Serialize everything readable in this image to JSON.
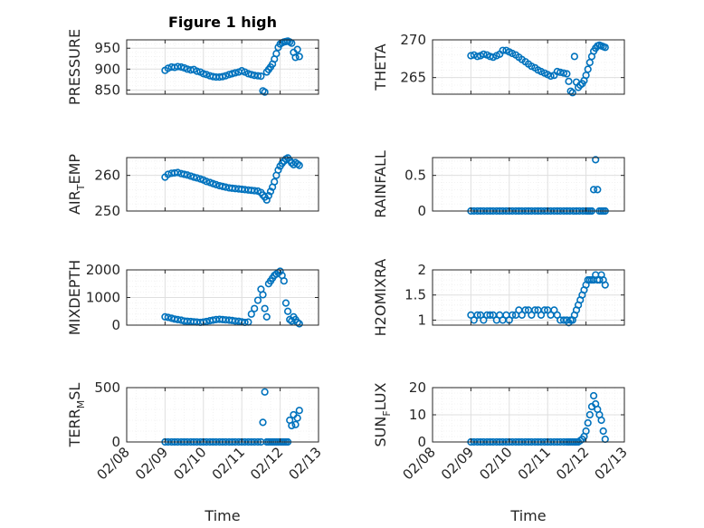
{
  "figure_title": "Figure 1 high",
  "colors": {
    "marker": "#0072BD",
    "axis": "#262626",
    "grid_major": "#dfdfdf",
    "grid_minor": "#efefef"
  },
  "chart_data": [
    {
      "type": "scatter",
      "title": "Figure 1 high",
      "ylabel_main": "PRESSURE",
      "ylabel_sub": "",
      "xlabel": "",
      "x_ticks": [],
      "ylim": [
        840,
        970
      ],
      "yticks": [
        850,
        900,
        950
      ],
      "xlim": [
        "02/08",
        "02/13"
      ],
      "grid": true,
      "marker": "circle",
      "series": [
        {
          "x": [
            9.0,
            9.08,
            9.17,
            9.25,
            9.33,
            9.42,
            9.5,
            9.58,
            9.67,
            9.75,
            9.83,
            9.92,
            10.0,
            10.08,
            10.17,
            10.25,
            10.33,
            10.42,
            10.5,
            10.58,
            10.67,
            10.75,
            10.83,
            10.92,
            11.0,
            11.08,
            11.17,
            11.25,
            11.33,
            11.42,
            11.5,
            11.55,
            11.6,
            11.65,
            11.7,
            11.75,
            11.8,
            11.85,
            11.9,
            11.95,
            12.0,
            12.05,
            12.1,
            12.15,
            12.2,
            12.25,
            12.3,
            12.35,
            12.4,
            12.45,
            12.5
          ],
          "y": [
            897,
            902,
            905,
            904,
            906,
            905,
            903,
            900,
            898,
            899,
            895,
            893,
            889,
            887,
            884,
            882,
            881,
            881,
            882,
            884,
            887,
            889,
            891,
            893,
            896,
            893,
            889,
            887,
            885,
            884,
            883,
            848,
            845,
            893,
            899,
            905,
            912,
            924,
            937,
            952,
            960,
            963,
            965,
            966,
            967,
            965,
            962,
            940,
            928,
            947,
            930
          ]
        }
      ]
    },
    {
      "type": "scatter",
      "title": "",
      "ylabel_main": "THETA",
      "ylabel_sub": "",
      "xlabel": "",
      "x_ticks": [],
      "ylim": [
        262.8,
        270
      ],
      "yticks": [
        265,
        270
      ],
      "xlim": [
        "02/08",
        "02/13"
      ],
      "grid": true,
      "marker": "circle",
      "series": [
        {
          "x": [
            9.0,
            9.08,
            9.17,
            9.25,
            9.33,
            9.42,
            9.5,
            9.58,
            9.67,
            9.75,
            9.83,
            9.92,
            10.0,
            10.08,
            10.17,
            10.25,
            10.33,
            10.42,
            10.5,
            10.58,
            10.67,
            10.75,
            10.83,
            10.92,
            11.0,
            11.08,
            11.17,
            11.25,
            11.33,
            11.42,
            11.5,
            11.55,
            11.6,
            11.65,
            11.7,
            11.75,
            11.8,
            11.85,
            11.9,
            11.95,
            12.0,
            12.05,
            12.1,
            12.15,
            12.2,
            12.25,
            12.3,
            12.35,
            12.4,
            12.45,
            12.5
          ],
          "y": [
            267.9,
            268.0,
            267.8,
            267.9,
            268.1,
            268.0,
            267.8,
            267.7,
            267.9,
            268.1,
            268.6,
            268.6,
            268.4,
            268.2,
            268.0,
            267.7,
            267.4,
            267.1,
            266.8,
            266.5,
            266.3,
            266.0,
            265.8,
            265.6,
            265.4,
            265.2,
            265.3,
            265.8,
            265.7,
            265.6,
            265.5,
            264.5,
            263.2,
            263.0,
            267.8,
            264.4,
            263.7,
            264.0,
            264.2,
            264.6,
            265.3,
            266.1,
            267.0,
            267.8,
            268.5,
            268.9,
            269.2,
            269.3,
            269.2,
            269.1,
            269.0
          ]
        }
      ]
    },
    {
      "type": "scatter",
      "title": "",
      "ylabel_main": "AIR",
      "ylabel_sub": "T",
      "ylabel_tail": "EMP",
      "xlabel": "",
      "x_ticks": [],
      "ylim": [
        250,
        265
      ],
      "yticks": [
        250,
        260
      ],
      "xlim": [
        "02/08",
        "02/13"
      ],
      "grid": true,
      "marker": "circle",
      "series": [
        {
          "x": [
            9.0,
            9.08,
            9.17,
            9.25,
            9.33,
            9.42,
            9.5,
            9.58,
            9.67,
            9.75,
            9.83,
            9.92,
            10.0,
            10.08,
            10.17,
            10.25,
            10.33,
            10.42,
            10.5,
            10.58,
            10.67,
            10.75,
            10.83,
            10.92,
            11.0,
            11.08,
            11.17,
            11.25,
            11.33,
            11.42,
            11.5,
            11.55,
            11.6,
            11.65,
            11.7,
            11.75,
            11.8,
            11.85,
            11.9,
            11.95,
            12.0,
            12.05,
            12.1,
            12.15,
            12.2,
            12.25,
            12.3,
            12.35,
            12.4,
            12.45,
            12.5
          ],
          "y": [
            259.5,
            260.3,
            260.6,
            260.7,
            260.8,
            260.5,
            260.3,
            260.1,
            259.8,
            259.5,
            259.3,
            259.0,
            258.7,
            258.3,
            258.0,
            257.7,
            257.4,
            257.1,
            256.9,
            256.7,
            256.5,
            256.4,
            256.3,
            256.2,
            256.1,
            256.0,
            255.9,
            255.8,
            255.7,
            255.6,
            255.2,
            254.5,
            253.9,
            253.1,
            254.3,
            255.5,
            256.7,
            258.2,
            260.0,
            261.5,
            262.6,
            263.4,
            264.0,
            264.6,
            264.9,
            264.2,
            263.5,
            263.0,
            263.6,
            263.2,
            262.8
          ]
        }
      ]
    },
    {
      "type": "scatter",
      "title": "",
      "ylabel_main": "RAINFALL",
      "ylabel_sub": "",
      "xlabel": "",
      "x_ticks": [],
      "ylim": [
        0,
        0.75
      ],
      "yticks": [
        0,
        0.5
      ],
      "ytick_labels": [
        "0",
        "0.5"
      ],
      "xlim": [
        "02/08",
        "02/13"
      ],
      "grid": true,
      "marker": "circle",
      "series": [
        {
          "x": [
            9.0,
            9.08,
            9.17,
            9.25,
            9.33,
            9.42,
            9.5,
            9.58,
            9.67,
            9.75,
            9.83,
            9.92,
            10.0,
            10.08,
            10.17,
            10.25,
            10.33,
            10.42,
            10.5,
            10.58,
            10.67,
            10.75,
            10.83,
            10.92,
            11.0,
            11.08,
            11.17,
            11.25,
            11.33,
            11.42,
            11.5,
            11.58,
            11.67,
            11.75,
            11.83,
            11.92,
            12.0,
            12.05,
            12.1,
            12.15,
            12.2,
            12.25,
            12.3,
            12.35,
            12.4,
            12.45,
            12.5
          ],
          "y": [
            0,
            0,
            0,
            0,
            0,
            0,
            0,
            0,
            0,
            0,
            0,
            0,
            0,
            0,
            0,
            0,
            0,
            0,
            0,
            0,
            0,
            0,
            0,
            0,
            0,
            0,
            0,
            0,
            0,
            0,
            0,
            0,
            0,
            0,
            0,
            0,
            0,
            0,
            0,
            0,
            0.3,
            0.72,
            0.3,
            0,
            0,
            0,
            0
          ]
        }
      ]
    },
    {
      "type": "scatter",
      "title": "",
      "ylabel_main": "MIXDEPTH",
      "ylabel_sub": "",
      "xlabel": "",
      "x_ticks": [],
      "ylim": [
        0,
        2000
      ],
      "yticks": [
        0,
        1000,
        2000
      ],
      "xlim": [
        "02/08",
        "02/13"
      ],
      "grid": true,
      "marker": "circle",
      "series": [
        {
          "x": [
            9.0,
            9.08,
            9.17,
            9.25,
            9.33,
            9.42,
            9.5,
            9.58,
            9.67,
            9.75,
            9.83,
            9.92,
            10.0,
            10.08,
            10.17,
            10.25,
            10.33,
            10.42,
            10.5,
            10.58,
            10.67,
            10.75,
            10.83,
            10.92,
            11.0,
            11.08,
            11.17,
            11.25,
            11.33,
            11.42,
            11.5,
            11.55,
            11.6,
            11.65,
            11.7,
            11.75,
            11.8,
            11.85,
            11.9,
            11.95,
            12.0,
            12.05,
            12.1,
            12.15,
            12.2,
            12.25,
            12.3,
            12.35,
            12.4,
            12.45,
            12.5
          ],
          "y": [
            300,
            280,
            250,
            220,
            200,
            180,
            150,
            140,
            130,
            120,
            110,
            100,
            110,
            130,
            160,
            180,
            200,
            210,
            200,
            190,
            180,
            170,
            150,
            140,
            120,
            100,
            110,
            400,
            600,
            900,
            1300,
            1100,
            600,
            300,
            1500,
            1600,
            1700,
            1800,
            1850,
            1900,
            1950,
            1800,
            1600,
            800,
            500,
            200,
            150,
            300,
            200,
            100,
            50
          ]
        }
      ]
    },
    {
      "type": "scatter",
      "title": "",
      "ylabel_main": "H2OMIXRA",
      "ylabel_sub": "",
      "xlabel": "",
      "x_ticks": [],
      "ylim": [
        0.9,
        2.0
      ],
      "yticks": [
        1,
        1.5,
        2
      ],
      "ytick_labels": [
        "1",
        "1.5",
        "2"
      ],
      "xlim": [
        "02/08",
        "02/13"
      ],
      "grid": true,
      "marker": "circle",
      "series": [
        {
          "x": [
            9.0,
            9.08,
            9.17,
            9.25,
            9.33,
            9.42,
            9.5,
            9.58,
            9.67,
            9.75,
            9.83,
            9.92,
            10.0,
            10.08,
            10.17,
            10.25,
            10.33,
            10.42,
            10.5,
            10.58,
            10.67,
            10.75,
            10.83,
            10.92,
            11.0,
            11.08,
            11.17,
            11.25,
            11.33,
            11.42,
            11.5,
            11.55,
            11.6,
            11.65,
            11.7,
            11.75,
            11.8,
            11.85,
            11.9,
            11.95,
            12.0,
            12.05,
            12.1,
            12.15,
            12.2,
            12.25,
            12.3,
            12.35,
            12.4,
            12.45,
            12.5
          ],
          "y": [
            1.1,
            1.0,
            1.1,
            1.1,
            1.0,
            1.1,
            1.1,
            1.1,
            1.0,
            1.1,
            1.0,
            1.1,
            1.0,
            1.1,
            1.1,
            1.2,
            1.1,
            1.2,
            1.2,
            1.1,
            1.2,
            1.2,
            1.1,
            1.2,
            1.2,
            1.1,
            1.2,
            1.1,
            1.0,
            1.0,
            1.0,
            0.95,
            1.0,
            1.0,
            1.1,
            1.2,
            1.3,
            1.4,
            1.5,
            1.6,
            1.7,
            1.8,
            1.8,
            1.8,
            1.8,
            1.9,
            1.8,
            1.8,
            1.9,
            1.8,
            1.7
          ]
        }
      ]
    },
    {
      "type": "scatter",
      "title": "",
      "ylabel_main": "TERR",
      "ylabel_sub": "M",
      "ylabel_tail": "SL",
      "xlabel": "Time",
      "ylim": [
        0,
        500
      ],
      "yticks": [
        0,
        500
      ],
      "xlim": [
        "02/08",
        "02/13"
      ],
      "grid": true,
      "marker": "circle",
      "x_ticks": [
        "02/08",
        "02/09",
        "02/10",
        "02/11",
        "02/12",
        "02/13"
      ],
      "series": [
        {
          "x": [
            9.0,
            9.08,
            9.17,
            9.25,
            9.33,
            9.42,
            9.5,
            9.58,
            9.67,
            9.75,
            9.83,
            9.92,
            10.0,
            10.08,
            10.17,
            10.25,
            10.33,
            10.42,
            10.5,
            10.58,
            10.67,
            10.75,
            10.83,
            10.92,
            11.0,
            11.08,
            11.17,
            11.25,
            11.33,
            11.42,
            11.5,
            11.55,
            11.6,
            11.65,
            11.7,
            11.75,
            11.8,
            11.85,
            11.9,
            11.95,
            12.0,
            12.05,
            12.1,
            12.15,
            12.2,
            12.25,
            12.3,
            12.35,
            12.4,
            12.45,
            12.5
          ],
          "y": [
            0,
            0,
            0,
            0,
            0,
            0,
            0,
            0,
            0,
            0,
            0,
            0,
            0,
            0,
            0,
            0,
            0,
            0,
            0,
            0,
            0,
            0,
            0,
            0,
            0,
            0,
            0,
            0,
            0,
            0,
            0,
            180,
            460,
            0,
            0,
            0,
            0,
            0,
            0,
            0,
            0,
            0,
            0,
            0,
            0,
            200,
            150,
            250,
            160,
            220,
            290
          ]
        }
      ]
    },
    {
      "type": "scatter",
      "title": "",
      "ylabel_main": "SUN",
      "ylabel_sub": "F",
      "ylabel_tail": "LUX",
      "xlabel": "Time",
      "ylim": [
        0,
        20
      ],
      "yticks": [
        0,
        10,
        20
      ],
      "xlim": [
        "02/08",
        "02/13"
      ],
      "grid": true,
      "marker": "circle",
      "x_ticks": [
        "02/08",
        "02/09",
        "02/10",
        "02/11",
        "02/12",
        "02/13"
      ],
      "series": [
        {
          "x": [
            9.0,
            9.08,
            9.17,
            9.25,
            9.33,
            9.42,
            9.5,
            9.58,
            9.67,
            9.75,
            9.83,
            9.92,
            10.0,
            10.08,
            10.17,
            10.25,
            10.33,
            10.42,
            10.5,
            10.58,
            10.67,
            10.75,
            10.83,
            10.92,
            11.0,
            11.08,
            11.17,
            11.25,
            11.33,
            11.42,
            11.5,
            11.55,
            11.6,
            11.65,
            11.7,
            11.75,
            11.8,
            11.85,
            11.9,
            11.95,
            12.0,
            12.05,
            12.1,
            12.15,
            12.2,
            12.25,
            12.3,
            12.35,
            12.4,
            12.45,
            12.5
          ],
          "y": [
            0,
            0,
            0,
            0,
            0,
            0,
            0,
            0,
            0,
            0,
            0,
            0,
            0,
            0,
            0,
            0,
            0,
            0,
            0,
            0,
            0,
            0,
            0,
            0,
            0,
            0,
            0,
            0,
            0,
            0,
            0,
            0,
            0,
            0,
            0,
            0,
            0,
            0.5,
            1,
            2,
            4,
            7,
            10,
            13,
            17,
            14,
            12,
            10,
            8,
            4,
            1
          ]
        }
      ]
    }
  ]
}
